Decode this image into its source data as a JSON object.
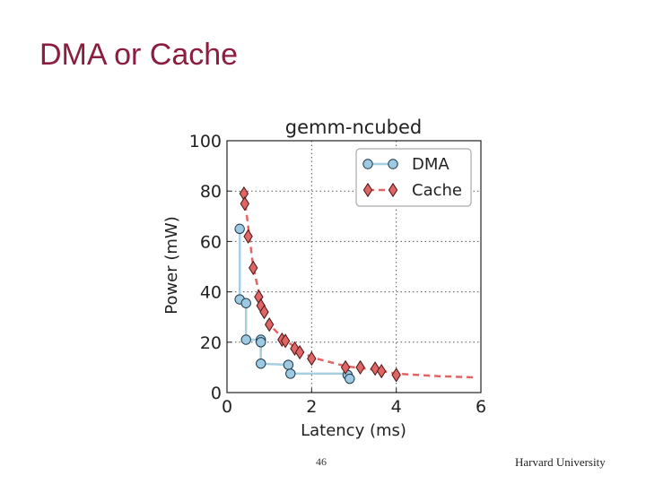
{
  "slide": {
    "title": "DMA or Cache",
    "page_number": "46",
    "footer": "Harvard University"
  },
  "chart_data": {
    "type": "line",
    "title": "gemm-ncubed",
    "xlabel": "Latency (ms)",
    "ylabel": "Power (mW)",
    "xlim": [
      0,
      6
    ],
    "ylim": [
      0,
      100
    ],
    "xticks": [
      0,
      2,
      4,
      6
    ],
    "yticks": [
      0,
      20,
      40,
      60,
      80,
      100
    ],
    "grid": true,
    "grid_style": "dotted",
    "legend_position": "top-right",
    "series": [
      {
        "name": "DMA",
        "marker": "circle",
        "color": "#9ecae1",
        "line_color": "#a6cfe2",
        "line_style": "solid",
        "points": [
          [
            0.3,
            65
          ],
          [
            0.3,
            37
          ],
          [
            0.45,
            35.5
          ],
          [
            0.45,
            21
          ],
          [
            0.8,
            21
          ],
          [
            0.8,
            20
          ],
          [
            0.8,
            11.5
          ],
          [
            1.45,
            11
          ],
          [
            1.5,
            7.5
          ],
          [
            2.85,
            7
          ],
          [
            2.9,
            5.5
          ]
        ],
        "frontier": [
          [
            0.3,
            65
          ],
          [
            0.3,
            37
          ],
          [
            0.45,
            35.5
          ],
          [
            0.45,
            21
          ],
          [
            0.8,
            21
          ],
          [
            0.8,
            11.5
          ],
          [
            1.5,
            11
          ],
          [
            1.5,
            7.5
          ],
          [
            2.85,
            7.5
          ],
          [
            2.85,
            5.5
          ]
        ]
      },
      {
        "name": "Cache",
        "marker": "diamond",
        "color": "#e06666",
        "line_color": "#e06666",
        "line_style": "dashed",
        "points": [
          [
            0.4,
            79
          ],
          [
            0.42,
            75
          ],
          [
            0.5,
            62
          ],
          [
            0.62,
            49.5
          ],
          [
            0.75,
            38
          ],
          [
            0.8,
            34.5
          ],
          [
            0.88,
            32
          ],
          [
            1.0,
            27
          ],
          [
            1.3,
            21
          ],
          [
            1.38,
            20.5
          ],
          [
            1.6,
            17.5
          ],
          [
            1.72,
            16
          ],
          [
            2.0,
            13.5
          ],
          [
            2.8,
            10
          ],
          [
            3.15,
            10
          ],
          [
            3.5,
            9.5
          ],
          [
            3.65,
            8.5
          ],
          [
            4.0,
            7
          ]
        ],
        "frontier": [
          [
            0.4,
            79
          ],
          [
            0.5,
            66
          ],
          [
            0.62,
            50
          ],
          [
            0.75,
            40
          ],
          [
            0.88,
            32
          ],
          [
            1.0,
            27
          ],
          [
            1.3,
            22
          ],
          [
            1.6,
            18
          ],
          [
            2.0,
            14
          ],
          [
            2.8,
            10.5
          ],
          [
            3.5,
            9
          ],
          [
            4.0,
            7.5
          ],
          [
            5.0,
            6.5
          ],
          [
            5.9,
            6
          ]
        ]
      }
    ]
  }
}
